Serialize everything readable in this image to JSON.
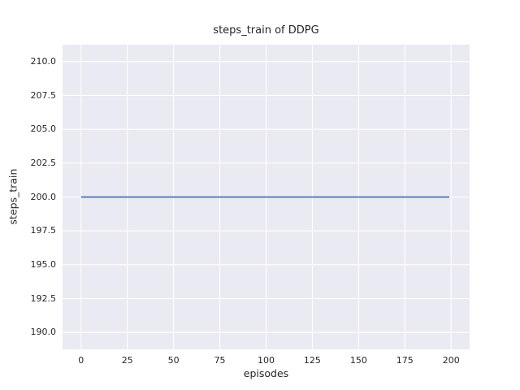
{
  "chart_data": {
    "type": "line",
    "title": "steps_train of DDPG",
    "xlabel": "episodes",
    "ylabel": "steps_train",
    "xlim": [
      -10,
      210
    ],
    "ylim": [
      188.75,
      211.25
    ],
    "xticks": [
      0,
      25,
      50,
      75,
      100,
      125,
      150,
      175,
      200
    ],
    "xtick_labels": [
      "0",
      "25",
      "50",
      "75",
      "100",
      "125",
      "150",
      "175",
      "200"
    ],
    "yticks": [
      190,
      192.5,
      195,
      197.5,
      200,
      202.5,
      205,
      207.5,
      210
    ],
    "ytick_labels": [
      "190.0",
      "192.5",
      "195.0",
      "197.5",
      "200.0",
      "202.5",
      "205.0",
      "207.5",
      "210.0"
    ],
    "grid": true,
    "legend": false,
    "style": {
      "plot_bg": "#eaeaf2",
      "grid_color": "#ffffff",
      "text_color": "#262626"
    },
    "series": [
      {
        "name": "steps_train",
        "color": "#4c72b0",
        "x": [
          0,
          199
        ],
        "y": [
          200,
          200
        ],
        "description": "constant value 200 across all episodes 0-199"
      }
    ]
  }
}
